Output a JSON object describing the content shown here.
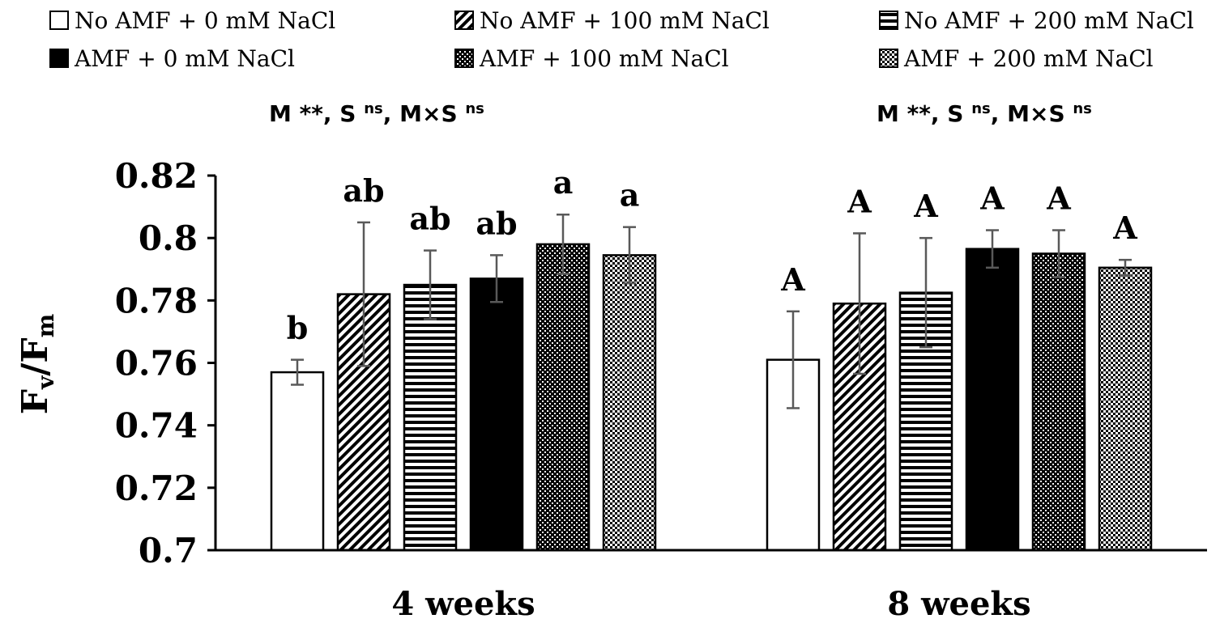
{
  "chart_data": {
    "type": "bar",
    "ylabel": {
      "main": "F",
      "sub1": "v",
      "slash": "/",
      "main2": "F",
      "sub2": "m"
    },
    "ylim": [
      0.7,
      0.82
    ],
    "yticks": [
      "0.82",
      "0.8",
      "0.78",
      "0.76",
      "0.74",
      "0.72",
      "0.7"
    ],
    "ytick_values": [
      0.82,
      0.8,
      0.78,
      0.76,
      0.74,
      0.72,
      0.7
    ],
    "categories": [
      "4 weeks",
      "8 weeks"
    ],
    "series": [
      {
        "name": "No AMF + 0 mM NaCl",
        "pattern": "white",
        "values": [
          0.757,
          0.761
        ],
        "errors": [
          0.004,
          0.0155
        ],
        "letters": [
          "b",
          "A"
        ]
      },
      {
        "name": "No AMF + 100 mM NaCl",
        "pattern": "diagonal",
        "values": [
          0.782,
          0.779
        ],
        "errors": [
          0.023,
          0.0225
        ],
        "letters": [
          "ab",
          "A"
        ]
      },
      {
        "name": "No AMF + 200 mM NaCl",
        "pattern": "horizontal",
        "values": [
          0.785,
          0.7825
        ],
        "errors": [
          0.011,
          0.0175
        ],
        "letters": [
          "ab",
          "A"
        ]
      },
      {
        "name": "AMF + 0 mM NaCl",
        "pattern": "black",
        "values": [
          0.787,
          0.7965
        ],
        "errors": [
          0.0075,
          0.006
        ],
        "letters": [
          "ab",
          "A"
        ]
      },
      {
        "name": "AMF + 100 mM NaCl",
        "pattern": "dense-check",
        "values": [
          0.798,
          0.795
        ],
        "errors": [
          0.0095,
          0.0075
        ],
        "letters": [
          "a",
          "A"
        ]
      },
      {
        "name": "AMF + 200 mM NaCl",
        "pattern": "light-check",
        "values": [
          0.7945,
          0.7905
        ],
        "errors": [
          0.009,
          0.0025
        ],
        "letters": [
          "a",
          "A"
        ]
      }
    ],
    "stats": [
      {
        "text1": "M **,  S ",
        "sup1": "ns",
        "text2": ", M×S ",
        "sup2": "ns"
      },
      {
        "text1": "M **,  S ",
        "sup1": "ns",
        "text2": ", M×S ",
        "sup2": "ns"
      }
    ],
    "colors": {
      "bar_edge": "#000000",
      "error_bar": "#595959",
      "axis": "#000000"
    }
  }
}
